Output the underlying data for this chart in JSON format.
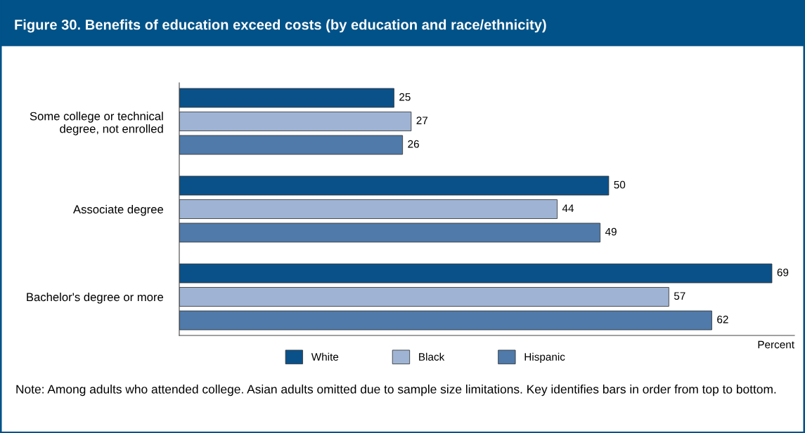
{
  "chart_data": {
    "type": "bar",
    "orientation": "horizontal",
    "title": "Figure 30. Benefits of education exceed costs (by education and race/ethnicity)",
    "categories": [
      "Some college or technical\ndegree, not enrolled",
      "Associate degree",
      "Bachelor's degree or more"
    ],
    "series": [
      {
        "name": "White",
        "color": "#0b5189",
        "values": [
          25,
          50,
          69
        ]
      },
      {
        "name": "Black",
        "color": "#9fb4d4",
        "values": [
          27,
          44,
          57
        ]
      },
      {
        "name": "Hispanic",
        "color": "#4f7aaa",
        "values": [
          26,
          49,
          62
        ]
      }
    ],
    "xlabel": "Percent",
    "data_labels": true,
    "legend": "bottom",
    "grid": false,
    "annotations": [
      "Note: Among adults who attended college. Asian adults omitted due to sample size limitations. Key identifies bars in order from top to bottom."
    ]
  }
}
